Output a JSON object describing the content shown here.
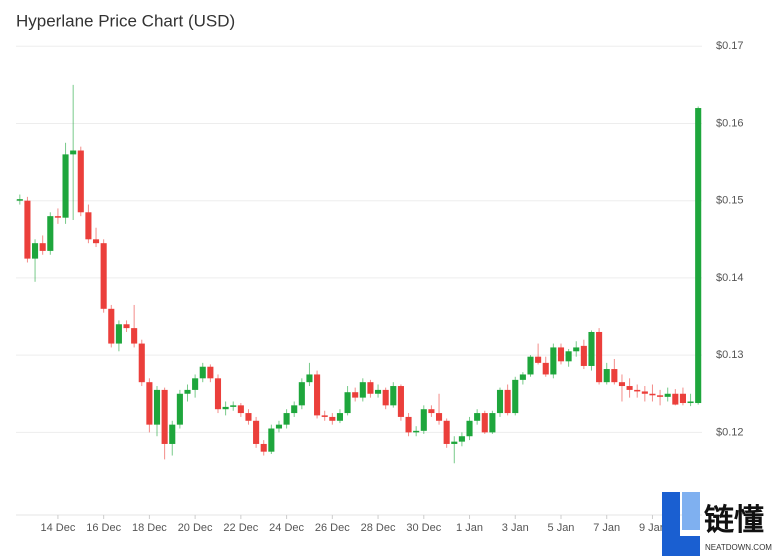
{
  "chart_data": {
    "type": "candlestick",
    "title": "Hyperlane Price Chart (USD)",
    "up_color": "#1ea63c",
    "down_color": "#eb3f3b",
    "grid": true,
    "ylim": [
      0.1093,
      0.1734
    ],
    "yticks": [
      {
        "value": 0.12,
        "label": "$0.12"
      },
      {
        "value": 0.13,
        "label": "$0.13"
      },
      {
        "value": 0.14,
        "label": "$0.14"
      },
      {
        "value": 0.15,
        "label": "$0.15"
      },
      {
        "value": 0.16,
        "label": "$0.16"
      },
      {
        "value": 0.17,
        "label": "$0.17"
      }
    ],
    "categories": [
      null,
      null,
      null,
      null,
      null,
      "14 Dec",
      null,
      null,
      null,
      null,
      null,
      "16 Dec",
      null,
      null,
      null,
      null,
      null,
      "18 Dec",
      null,
      null,
      null,
      null,
      null,
      "20 Dec",
      null,
      null,
      null,
      null,
      null,
      "22 Dec",
      null,
      null,
      null,
      null,
      null,
      "24 Dec",
      null,
      null,
      null,
      null,
      null,
      "26 Dec",
      null,
      null,
      null,
      null,
      null,
      "28 Dec",
      null,
      null,
      null,
      null,
      null,
      "30 Dec",
      null,
      null,
      null,
      null,
      null,
      "1 Jan",
      null,
      null,
      null,
      null,
      null,
      "3 Jan",
      null,
      null,
      null,
      null,
      null,
      "5 Jan",
      null,
      null,
      null,
      null,
      null,
      "7 Jan",
      null,
      null,
      null,
      null,
      null,
      "9 Jan",
      null,
      null,
      null,
      null,
      null,
      null
    ],
    "open": [
      0.15,
      0.15,
      0.1425,
      0.1445,
      0.1435,
      0.148,
      0.1478,
      0.156,
      0.1565,
      0.1485,
      0.145,
      0.1445,
      0.136,
      0.1315,
      0.134,
      0.1335,
      0.1315,
      0.1265,
      0.121,
      0.1255,
      0.1185,
      0.121,
      0.125,
      0.1255,
      0.127,
      0.1285,
      0.127,
      0.123,
      0.1233,
      0.1235,
      0.1225,
      0.1215,
      0.1185,
      0.1175,
      0.1205,
      0.121,
      0.1225,
      0.1235,
      0.1265,
      0.1275,
      0.1222,
      0.122,
      0.1215,
      0.1225,
      0.1252,
      0.1245,
      0.1265,
      0.125,
      0.1255,
      0.1235,
      0.126,
      0.122,
      0.12,
      0.1202,
      0.123,
      0.1225,
      0.1215,
      0.1185,
      0.1188,
      0.1195,
      0.1215,
      0.1225,
      0.12,
      0.1225,
      0.1255,
      0.1225,
      0.1268,
      0.1275,
      0.1298,
      0.129,
      0.1275,
      0.131,
      0.1292,
      0.1305,
      0.1312,
      0.1286,
      0.133,
      0.1265,
      0.1282,
      0.1265,
      0.126,
      0.1255,
      0.1253,
      0.125,
      0.1248,
      0.1246,
      0.125,
      0.125,
      0.1238,
      0.1238
    ],
    "high": [
      0.1508,
      0.1505,
      0.145,
      0.1455,
      0.1485,
      0.149,
      0.1575,
      0.165,
      0.157,
      0.1495,
      0.1465,
      0.145,
      0.1365,
      0.1345,
      0.1345,
      0.1365,
      0.132,
      0.127,
      0.126,
      0.1258,
      0.1215,
      0.1255,
      0.1262,
      0.1275,
      0.129,
      0.1288,
      0.1275,
      0.124,
      0.124,
      0.1238,
      0.123,
      0.122,
      0.119,
      0.121,
      0.1215,
      0.123,
      0.124,
      0.127,
      0.129,
      0.128,
      0.1228,
      0.1225,
      0.123,
      0.126,
      0.1258,
      0.127,
      0.1268,
      0.1262,
      0.1258,
      0.1265,
      0.1262,
      0.1225,
      0.1208,
      0.1235,
      0.1235,
      0.125,
      0.1218,
      0.1195,
      0.12,
      0.122,
      0.123,
      0.1228,
      0.1228,
      0.1258,
      0.1262,
      0.1272,
      0.1278,
      0.13,
      0.1315,
      0.1298,
      0.1315,
      0.1315,
      0.1308,
      0.1318,
      0.132,
      0.1332,
      0.1335,
      0.129,
      0.1295,
      0.1275,
      0.127,
      0.1262,
      0.126,
      0.1262,
      0.1255,
      0.1258,
      0.1256,
      0.1258,
      0.125,
      0.1622
    ],
    "low": [
      0.1495,
      0.142,
      0.1395,
      0.143,
      0.143,
      0.147,
      0.147,
      0.1475,
      0.148,
      0.1445,
      0.144,
      0.1355,
      0.131,
      0.1305,
      0.133,
      0.131,
      0.126,
      0.12,
      0.1195,
      0.1165,
      0.117,
      0.1205,
      0.124,
      0.1245,
      0.1265,
      0.1265,
      0.1225,
      0.1222,
      0.1228,
      0.122,
      0.121,
      0.118,
      0.117,
      0.1172,
      0.12,
      0.1205,
      0.122,
      0.123,
      0.126,
      0.1218,
      0.1215,
      0.121,
      0.1212,
      0.1222,
      0.124,
      0.124,
      0.1245,
      0.1245,
      0.123,
      0.1232,
      0.1215,
      0.1195,
      0.1195,
      0.1198,
      0.122,
      0.121,
      0.118,
      0.116,
      0.1182,
      0.119,
      0.121,
      0.1198,
      0.1198,
      0.122,
      0.1222,
      0.1222,
      0.1262,
      0.1272,
      0.1288,
      0.1272,
      0.127,
      0.1288,
      0.1285,
      0.1298,
      0.1282,
      0.128,
      0.1262,
      0.1262,
      0.1262,
      0.124,
      0.1245,
      0.1245,
      0.124,
      0.124,
      0.1235,
      0.124,
      0.1235,
      0.1235,
      0.1234,
      0.1236
    ],
    "close": [
      0.1502,
      0.1425,
      0.1445,
      0.1435,
      0.148,
      0.1478,
      0.156,
      0.1565,
      0.1485,
      0.145,
      0.1445,
      0.136,
      0.1315,
      0.134,
      0.1335,
      0.1315,
      0.1265,
      0.121,
      0.1255,
      0.1185,
      0.121,
      0.125,
      0.1255,
      0.127,
      0.1285,
      0.127,
      0.123,
      0.1233,
      0.1235,
      0.1225,
      0.1215,
      0.1185,
      0.1175,
      0.1205,
      0.121,
      0.1225,
      0.1235,
      0.1265,
      0.1275,
      0.1222,
      0.122,
      0.1215,
      0.1225,
      0.1252,
      0.1245,
      0.1265,
      0.125,
      0.1255,
      0.1235,
      0.126,
      0.122,
      0.12,
      0.1202,
      0.123,
      0.1225,
      0.1215,
      0.1185,
      0.1188,
      0.1195,
      0.1215,
      0.1225,
      0.12,
      0.1225,
      0.1255,
      0.1225,
      0.1268,
      0.1275,
      0.1298,
      0.129,
      0.1275,
      0.131,
      0.1292,
      0.1305,
      0.131,
      0.1286,
      0.133,
      0.1265,
      0.1282,
      0.1265,
      0.126,
      0.1255,
      0.1253,
      0.125,
      0.1248,
      0.1246,
      0.125,
      0.1236,
      0.1238,
      0.124,
      0.162
    ]
  },
  "watermark": {
    "text": "链懂",
    "subtext": "NEATDOWN.COM"
  }
}
